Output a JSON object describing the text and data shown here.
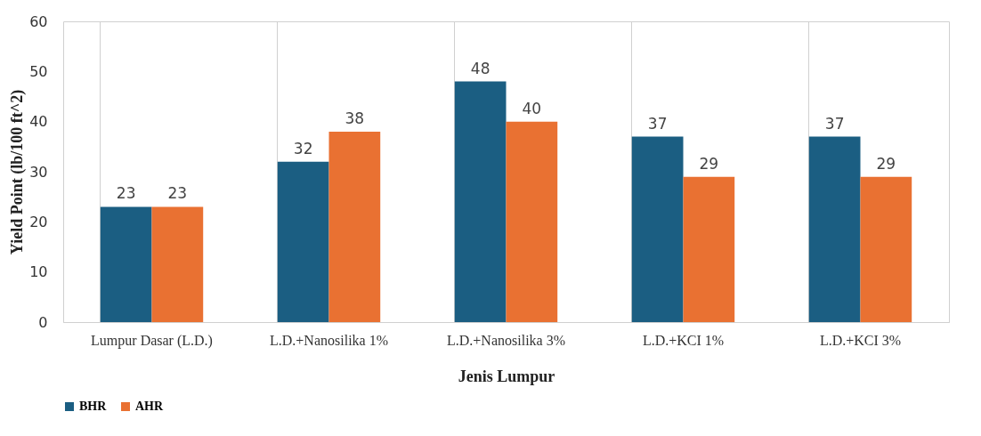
{
  "chart_data": {
    "type": "bar",
    "xlabel": "Jenis Lumpur",
    "ylabel": "Yield Point (lb/100 ft^2)",
    "categories": [
      "Lumpur Dasar (L.D.)",
      "L.D.+Nanosilika 1%",
      "L.D.+Nanosilika 3%",
      "L.D.+KCI 1%",
      "L.D.+KCI 3%"
    ],
    "series": [
      {
        "name": "BHR",
        "color": "#1b5e82",
        "values": [
          23,
          32,
          48,
          37,
          37
        ]
      },
      {
        "name": "AHR",
        "color": "#e97132",
        "values": [
          23,
          38,
          40,
          29,
          29
        ]
      }
    ],
    "ylim": [
      0,
      60
    ],
    "yticks": [
      0,
      10,
      20,
      30,
      40,
      50,
      60
    ],
    "grid": "x",
    "legend": "bottom",
    "data_labels": true
  }
}
